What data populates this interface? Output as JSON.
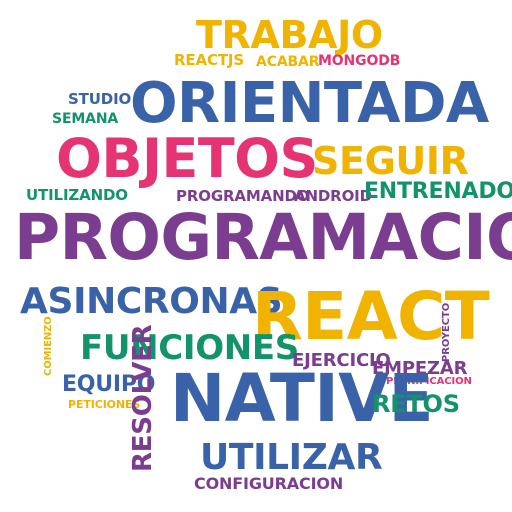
{
  "colors": {
    "yellow": "#f0b400",
    "blue": "#3a62a8",
    "pink": "#e63374",
    "purple": "#7b3d8f",
    "green": "#13936b"
  },
  "words": [
    "TRABAJO",
    "REACTJS",
    "ACABAR",
    "MONGODB",
    "STUDIO",
    "SEMANA",
    "ORIENTADA",
    "OBJETOS",
    "SEGUIR",
    "UTILIZANDO",
    "PROGRAMANDO",
    "ANDROID",
    "ENTRENADO",
    "PROGRAMACION",
    "ASINCRONAS",
    "REACT",
    "FUNCIONES",
    "COMIENZO",
    "PROYECTO",
    "EJERCICIO",
    "EMPEZAR",
    "PLANIFICACION",
    "EQUIPO",
    "PETICIONES",
    "RESOLVER",
    "NATIVE",
    "RETOS",
    "UTILIZAR",
    "CONFIGURACION"
  ]
}
